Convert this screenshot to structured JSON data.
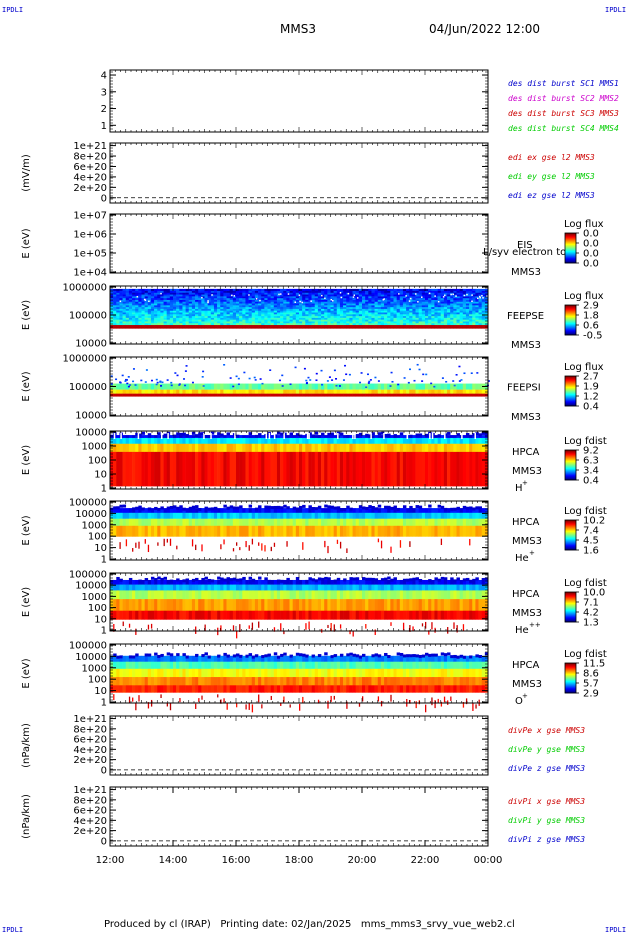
{
  "header": {
    "corner_tag": "IPDLI",
    "spacecraft": "MMS3",
    "datetime": "04/Jun/2022 12:00"
  },
  "footer": {
    "text": "Produced by cl (IRAP)   Printing date: 02/Jan/2025   mms_mms3_srvy_vue_web2.cl"
  },
  "time_axis": {
    "ticks": [
      "12:00",
      "14:00",
      "16:00",
      "18:00",
      "20:00",
      "22:00",
      "00:00"
    ]
  },
  "colors": {
    "red": "#cc0000",
    "green": "#00cc00",
    "blue": "#0000cc",
    "magenta": "#cc00cc"
  },
  "chart_data": [
    {
      "type": "line",
      "id": "des-dist",
      "ylabel": "",
      "yticks": [
        "1",
        "2",
        "3",
        "4"
      ],
      "ylim": [
        0.6,
        4.3
      ],
      "legend": [
        {
          "label": "des dist burst SC1 MMS1",
          "color": "#0000cc"
        },
        {
          "label": "des dist burst SC2 MMS2",
          "color": "#cc00cc"
        },
        {
          "label": "des dist burst SC3 MMS3",
          "color": "#cc0000"
        },
        {
          "label": "des dist burst SC4 MMS4",
          "color": "#00cc00"
        }
      ]
    },
    {
      "type": "line",
      "id": "edi-e",
      "ylabel": "(mV/m)",
      "yticks": [
        "0",
        "2e+20",
        "4e+20",
        "6e+20",
        "8e+20",
        "1e+21"
      ],
      "ylim": [
        -1e+20,
        1.05e+21
      ],
      "zero_line": true,
      "legend": [
        {
          "label": "edi ex gse l2 MMS3",
          "color": "#cc0000"
        },
        {
          "label": "edi ey gse l2 MMS3",
          "color": "#00cc00"
        },
        {
          "label": "edi ez gse l2 MMS3",
          "color": "#0000cc"
        }
      ]
    },
    {
      "type": "heatmap",
      "id": "eis",
      "ylabel": "E (eV)",
      "scale": "log",
      "yticks": [
        "1e+04",
        "1e+05",
        "1e+06",
        "1e+07"
      ],
      "instrument": "EIS",
      "sc": "MMS3",
      "overlap_text": "L/syv electron to",
      "cbar": {
        "title": "Log flux",
        "ticks": [
          "0.0",
          "0.0",
          "0.0",
          "0.0"
        ]
      },
      "data": "empty"
    },
    {
      "type": "heatmap",
      "id": "feeps-e",
      "ylabel": "E (eV)",
      "scale": "log",
      "yticks": [
        "10000",
        "100000",
        "1000000"
      ],
      "instrument": "FEEPSE",
      "sc": "MMS3",
      "cbar": {
        "title": "Log flux",
        "ticks": [
          "2.9",
          "1.8",
          "0.6",
          "-0.5"
        ]
      }
    },
    {
      "type": "heatmap",
      "id": "feeps-i",
      "ylabel": "E (eV)",
      "scale": "log",
      "yticks": [
        "10000",
        "100000",
        "1000000"
      ],
      "instrument": "FEEPSI",
      "sc": "MMS3",
      "cbar": {
        "title": "Log flux",
        "ticks": [
          "2.7",
          "1.9",
          "1.2",
          "0.4"
        ]
      }
    },
    {
      "type": "heatmap",
      "id": "hpca-h",
      "ylabel": "E (eV)",
      "scale": "log",
      "yticks": [
        "1",
        "10",
        "100",
        "1000",
        "10000"
      ],
      "instrument": "HPCA",
      "sc": "MMS3",
      "species": "H",
      "charge": "+",
      "cbar": {
        "title": "Log fdist",
        "ticks": [
          "9.2",
          "6.3",
          "3.4",
          "0.4"
        ]
      }
    },
    {
      "type": "heatmap",
      "id": "hpca-he",
      "ylabel": "E (eV)",
      "scale": "log",
      "yticks": [
        "1",
        "10",
        "100",
        "1000",
        "10000",
        "100000"
      ],
      "instrument": "HPCA",
      "sc": "MMS3",
      "species": "He",
      "charge": "+",
      "cbar": {
        "title": "Log fdist",
        "ticks": [
          "10.2",
          "7.4",
          "4.5",
          "1.6"
        ]
      }
    },
    {
      "type": "heatmap",
      "id": "hpca-he2",
      "ylabel": "E (eV)",
      "scale": "log",
      "yticks": [
        "1",
        "10",
        "100",
        "1000",
        "10000",
        "100000"
      ],
      "instrument": "HPCA",
      "sc": "MMS3",
      "species": "He",
      "charge": "++",
      "cbar": {
        "title": "Log fdist",
        "ticks": [
          "10.0",
          "7.1",
          "4.2",
          "1.3"
        ]
      }
    },
    {
      "type": "heatmap",
      "id": "hpca-o",
      "ylabel": "E (eV)",
      "scale": "log",
      "yticks": [
        "1",
        "10",
        "100",
        "1000",
        "10000",
        "100000"
      ],
      "instrument": "HPCA",
      "sc": "MMS3",
      "species": "O",
      "charge": "+",
      "cbar": {
        "title": "Log fdist",
        "ticks": [
          "11.5",
          "8.6",
          "5.7",
          "2.9"
        ]
      }
    },
    {
      "type": "line",
      "id": "divpe",
      "ylabel": "(nPa/km)",
      "yticks": [
        "0",
        "2e+20",
        "4e+20",
        "6e+20",
        "8e+20",
        "1e+21"
      ],
      "ylim": [
        -1e+20,
        1.05e+21
      ],
      "zero_line": true,
      "legend": [
        {
          "label": "divPe x gse MMS3",
          "color": "#cc0000"
        },
        {
          "label": "divPe y gse MMS3",
          "color": "#00cc00"
        },
        {
          "label": "divPe z gse MMS3",
          "color": "#0000cc"
        }
      ]
    },
    {
      "type": "line",
      "id": "divpi",
      "ylabel": "(nPa/km)",
      "yticks": [
        "0",
        "2e+20",
        "4e+20",
        "6e+20",
        "8e+20",
        "1e+21"
      ],
      "ylim": [
        -1e+20,
        1.05e+21
      ],
      "zero_line": true,
      "legend": [
        {
          "label": "divPi x gse MMS3",
          "color": "#cc0000"
        },
        {
          "label": "divPi y gse MMS3",
          "color": "#00cc00"
        },
        {
          "label": "divPi z gse MMS3",
          "color": "#0000cc"
        }
      ]
    }
  ]
}
